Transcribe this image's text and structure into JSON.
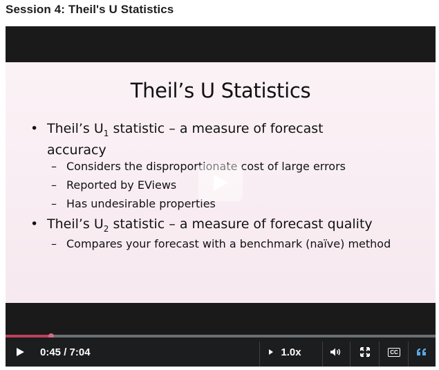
{
  "page": {
    "title": "Session 4: Theil's U Statistics"
  },
  "slide": {
    "title": "Theil’s U Statistics",
    "bullet1": {
      "prefix": "Theil’s U",
      "subscript": "1",
      "text": " statistic – a measure of forecast accuracy"
    },
    "sub1": "Considers the disproportionate cost of large errors",
    "sub2": "Reported by EViews",
    "sub3": "Has undesirable properties",
    "bullet2": {
      "prefix": "Theil’s U",
      "subscript": "2",
      "text": " statistic – a measure of forecast quality"
    },
    "sub4": "Compares your forecast  with a benchmark (naïve) method",
    "bullet_symbol": "•",
    "dash_symbol": "–"
  },
  "player": {
    "current_time": "0:45",
    "duration": "7:04",
    "time_display": "0:45 / 7:04",
    "progress_fraction": 0.106,
    "speed": "1.0x",
    "cc_label": "CC",
    "accent_color": "#c0405a",
    "icons": {
      "play": "play-icon",
      "speed": "triangle-right-icon",
      "volume": "volume-icon",
      "fullscreen": "expand-icon",
      "captions": "cc-icon",
      "transcript": "quote-icon"
    }
  }
}
